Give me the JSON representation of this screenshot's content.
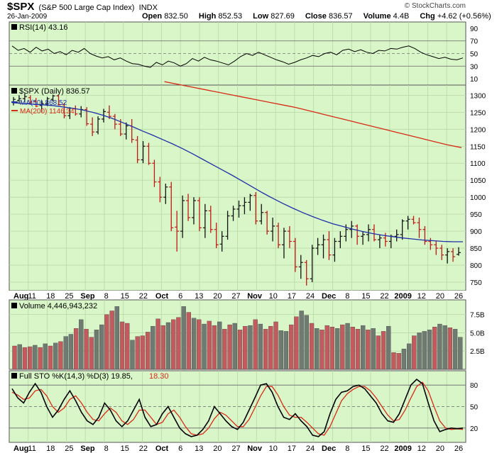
{
  "header": {
    "symbol": "$SPX",
    "name": "(S&P 500 Large Cap Index)",
    "exchange": "INDX",
    "date": "26-Jan-2009",
    "open_label": "Open",
    "open": "832.50",
    "high_label": "High",
    "high": "852.53",
    "low_label": "Low",
    "low": "827.69",
    "close_label": "Close",
    "close": "836.57",
    "volume_label": "Volume",
    "volume": "4.4B",
    "chg_label": "Chg",
    "chg": "+4.62 (+0.56%)",
    "watermark": "© StockCharts.com"
  },
  "colors": {
    "panel_bg": "#d9f6c8",
    "grid": "#b6d9a4",
    "ma50": "#1f2fa8",
    "ma200": "#d92a16",
    "up_volume": "#6f7a72",
    "down_volume": "#c25a5f",
    "price_bar_up": "#111111",
    "price_bar_down": "#c01818",
    "sto_k": "#000000",
    "sto_d": "#d92a16"
  },
  "chart_data": [
    {
      "type": "line",
      "title": "RSI(14) 43.16",
      "ylim": [
        0,
        100
      ],
      "yticks": [
        10,
        30,
        50,
        70,
        90
      ],
      "reference_lines": [
        30,
        50,
        70
      ],
      "values": [
        62,
        55,
        58,
        52,
        60,
        54,
        57,
        50,
        53,
        48,
        55,
        52,
        58,
        50,
        46,
        43,
        45,
        40,
        43,
        38,
        34,
        33,
        30,
        28,
        36,
        32,
        38,
        35,
        30,
        34,
        42,
        38,
        44,
        40,
        38,
        35,
        32,
        38,
        45,
        50,
        47,
        52,
        48,
        44,
        40,
        37,
        33,
        36,
        40,
        43,
        47,
        45,
        50,
        52,
        48,
        55,
        57,
        53,
        56,
        52,
        50,
        55,
        54,
        58,
        57,
        60,
        62,
        58,
        52,
        48,
        45,
        42,
        44,
        41,
        40,
        43
      ]
    },
    {
      "type": "line",
      "title": "$SPX (Daily) 836.57",
      "legend": [
        {
          "name": "MA(50) 868.52",
          "color": "#1f2fa8"
        },
        {
          "name": "MA(200) 1146.34",
          "color": "#d92a16"
        }
      ],
      "x_tick_labels": [
        "Aug",
        "11",
        "18",
        "25",
        "Sep",
        "8",
        "15",
        "22",
        "Oct",
        "6",
        "13",
        "20",
        "27",
        "Nov",
        "10",
        "17",
        "24",
        "Dec",
        "8",
        "15",
        "22",
        "2009",
        "12",
        "20",
        "26"
      ],
      "ylim": [
        725,
        1330
      ],
      "yticks": [
        750,
        800,
        850,
        900,
        950,
        1000,
        1050,
        1100,
        1150,
        1200,
        1250,
        1300
      ],
      "price_bars": [
        [
          1280,
          1295,
          1270,
          1288
        ],
        [
          1285,
          1300,
          1275,
          1290
        ],
        [
          1290,
          1305,
          1280,
          1296
        ],
        [
          1293,
          1300,
          1275,
          1280
        ],
        [
          1282,
          1292,
          1265,
          1268
        ],
        [
          1270,
          1285,
          1250,
          1275
        ],
        [
          1275,
          1295,
          1268,
          1290
        ],
        [
          1288,
          1302,
          1282,
          1298
        ],
        [
          1298,
          1300,
          1270,
          1272
        ],
        [
          1272,
          1278,
          1232,
          1240
        ],
        [
          1240,
          1265,
          1230,
          1262
        ],
        [
          1260,
          1270,
          1240,
          1245
        ],
        [
          1245,
          1268,
          1235,
          1258
        ],
        [
          1258,
          1265,
          1210,
          1216
        ],
        [
          1215,
          1235,
          1180,
          1192
        ],
        [
          1192,
          1238,
          1185,
          1230
        ],
        [
          1230,
          1260,
          1220,
          1252
        ],
        [
          1250,
          1270,
          1230,
          1238
        ],
        [
          1238,
          1245,
          1200,
          1215
        ],
        [
          1215,
          1230,
          1180,
          1186
        ],
        [
          1186,
          1220,
          1170,
          1210
        ],
        [
          1210,
          1230,
          1160,
          1170
        ],
        [
          1168,
          1180,
          1100,
          1110
        ],
        [
          1110,
          1165,
          1100,
          1150
        ],
        [
          1150,
          1160,
          1095,
          1100
        ],
        [
          1100,
          1110,
          1030,
          1045
        ],
        [
          1045,
          1060,
          985,
          1000
        ],
        [
          1000,
          1040,
          980,
          1030
        ],
        [
          1030,
          1045,
          900,
          910
        ],
        [
          912,
          960,
          840,
          900
        ],
        [
          900,
          1005,
          880,
          990
        ],
        [
          990,
          1010,
          930,
          940
        ],
        [
          940,
          1000,
          920,
          990
        ],
        [
          990,
          1000,
          900,
          910
        ],
        [
          910,
          980,
          880,
          960
        ],
        [
          960,
          975,
          895,
          905
        ],
        [
          905,
          925,
          850,
          860
        ],
        [
          862,
          900,
          840,
          885
        ],
        [
          885,
          960,
          875,
          945
        ],
        [
          945,
          975,
          930,
          965
        ],
        [
          965,
          990,
          940,
          975
        ],
        [
          975,
          1000,
          950,
          985
        ],
        [
          985,
          1010,
          960,
          1005
        ],
        [
          1005,
          1015,
          920,
          930
        ],
        [
          930,
          980,
          920,
          955
        ],
        [
          955,
          960,
          890,
          900
        ],
        [
          900,
          940,
          870,
          915
        ],
        [
          915,
          925,
          850,
          860
        ],
        [
          860,
          910,
          820,
          900
        ],
        [
          900,
          915,
          850,
          870
        ],
        [
          870,
          880,
          780,
          795
        ],
        [
          795,
          830,
          760,
          808
        ],
        [
          808,
          815,
          740,
          760
        ],
        [
          760,
          860,
          750,
          850
        ],
        [
          850,
          880,
          830,
          860
        ],
        [
          860,
          890,
          820,
          875
        ],
        [
          875,
          900,
          815,
          830
        ],
        [
          830,
          880,
          810,
          870
        ],
        [
          870,
          900,
          850,
          885
        ],
        [
          885,
          920,
          870,
          905
        ],
        [
          905,
          930,
          880,
          915
        ],
        [
          915,
          920,
          860,
          885
        ],
        [
          885,
          900,
          860,
          890
        ],
        [
          890,
          920,
          870,
          905
        ],
        [
          905,
          920,
          870,
          875
        ],
        [
          875,
          890,
          850,
          880
        ],
        [
          880,
          895,
          855,
          870
        ],
        [
          870,
          890,
          850,
          885
        ],
        [
          885,
          905,
          870,
          890
        ],
        [
          890,
          935,
          875,
          930
        ],
        [
          930,
          945,
          905,
          935
        ],
        [
          935,
          945,
          920,
          925
        ],
        [
          925,
          940,
          880,
          905
        ],
        [
          905,
          915,
          860,
          870
        ],
        [
          870,
          880,
          845,
          860
        ],
        [
          860,
          870,
          830,
          850
        ],
        [
          850,
          860,
          815,
          830
        ],
        [
          830,
          850,
          805,
          840
        ],
        [
          840,
          850,
          810,
          825
        ],
        [
          832,
          853,
          828,
          837
        ]
      ],
      "ma50": [
        1278,
        1276,
        1274,
        1272,
        1270,
        1266,
        1262,
        1257,
        1250,
        1242,
        1232,
        1220,
        1208,
        1195,
        1183,
        1170,
        1157,
        1143,
        1128,
        1112,
        1096,
        1080,
        1064,
        1047,
        1030,
        1013,
        997,
        982,
        968,
        955,
        943,
        932,
        922,
        914,
        906,
        899,
        893,
        888,
        884,
        880,
        877,
        874,
        872,
        870,
        869,
        869
      ],
      "ma200": [
        1340,
        1336,
        1332,
        1328,
        1324,
        1320,
        1316,
        1312,
        1308,
        1304,
        1300,
        1296,
        1292,
        1288,
        1284,
        1280,
        1276,
        1272,
        1268,
        1264,
        1259,
        1254,
        1249,
        1244,
        1239,
        1234,
        1229,
        1224,
        1219,
        1214,
        1209,
        1204,
        1199,
        1194,
        1189,
        1184,
        1179,
        1174,
        1169,
        1164,
        1159,
        1154,
        1150,
        1146
      ]
    },
    {
      "type": "bar",
      "title": "Volume 4,446,943,232",
      "ylim": [
        0,
        9.5
      ],
      "yticks": [
        2.5,
        5.0,
        7.5
      ],
      "ytick_labels": [
        "2.5B",
        "5.0B",
        "7.5B"
      ],
      "values": [
        3.2,
        3.4,
        3.0,
        3.1,
        3.3,
        3.0,
        3.5,
        3.2,
        3.6,
        3.8,
        4.5,
        4.8,
        5.6,
        6.8,
        5.5,
        4.4,
        5.4,
        6.1,
        7.5,
        8.0,
        8.6,
        6.5,
        6.3,
        4.0,
        4.5,
        4.6,
        5.1,
        5.9,
        6.9,
        6.0,
        6.4,
        6.8,
        7.1,
        8.6,
        7.8,
        7.0,
        6.8,
        6.2,
        6.6,
        6.0,
        6.5,
        5.5,
        6.1,
        6.3,
        5.4,
        5.9,
        6.0,
        6.8,
        6.2,
        5.5,
        5.9,
        6.5,
        5.3,
        5.2,
        6.1,
        7.2,
        8.0,
        7.4,
        6.3,
        5.6,
        5.4,
        6.0,
        5.8,
        5.6,
        6.1,
        6.3,
        5.8,
        5.5,
        6.0,
        5.4,
        5.6,
        4.6,
        5.2,
        5.9,
        2.3,
        2.2,
        2.8,
        3.5,
        4.6,
        5.0,
        5.2,
        5.4,
        5.8,
        6.2,
        6.0,
        5.7,
        5.5,
        4.4
      ],
      "up": [
        0,
        1,
        0,
        0,
        1,
        0,
        1,
        0,
        1,
        0,
        1,
        1,
        0,
        1,
        0,
        0,
        1,
        1,
        0,
        0,
        1,
        0,
        0,
        1,
        0,
        0,
        0,
        1,
        0,
        0,
        1,
        0,
        0,
        1,
        0,
        1,
        0,
        1,
        0,
        0,
        1,
        0,
        0,
        1,
        0,
        0,
        1,
        0,
        1,
        0,
        0,
        0,
        1,
        1,
        0,
        0,
        1,
        1,
        0,
        1,
        0,
        0,
        0,
        1,
        0,
        1,
        0,
        0,
        1,
        0,
        1,
        0,
        0,
        1,
        0,
        0,
        1,
        1,
        0,
        1,
        1,
        1,
        0,
        1,
        1,
        0,
        1,
        1
      ]
    },
    {
      "type": "line",
      "title": "Full STO %K(14,3) %D(3) 19.85, 18.30",
      "ylim": [
        0,
        100
      ],
      "yticks": [
        20,
        50,
        80
      ],
      "reference_lines": [
        20,
        50,
        80
      ],
      "x_tick_labels": [
        "Aug",
        "11",
        "18",
        "25",
        "Sep",
        "8",
        "15",
        "22",
        "Oct",
        "6",
        "13",
        "20",
        "27",
        "Nov",
        "10",
        "17",
        "24",
        "Dec",
        "8",
        "15",
        "22",
        "2009",
        "12",
        "20",
        "26"
      ],
      "k": [
        75,
        62,
        55,
        70,
        82,
        70,
        50,
        35,
        45,
        60,
        72,
        58,
        42,
        30,
        25,
        35,
        55,
        45,
        30,
        22,
        30,
        45,
        60,
        35,
        22,
        25,
        40,
        50,
        35,
        20,
        12,
        8,
        10,
        18,
        30,
        50,
        40,
        30,
        22,
        18,
        28,
        45,
        62,
        80,
        82,
        70,
        50,
        35,
        32,
        40,
        30,
        22,
        10,
        8,
        15,
        40,
        60,
        70,
        72,
        78,
        80,
        75,
        65,
        55,
        40,
        30,
        28,
        40,
        60,
        80,
        88,
        82,
        55,
        30,
        15,
        18,
        20,
        19,
        20
      ],
      "d": [
        70,
        66,
        60,
        62,
        72,
        74,
        65,
        50,
        42,
        48,
        60,
        65,
        55,
        42,
        32,
        30,
        40,
        48,
        42,
        30,
        25,
        32,
        45,
        45,
        35,
        25,
        28,
        40,
        45,
        35,
        22,
        12,
        10,
        12,
        20,
        33,
        42,
        38,
        30,
        22,
        22,
        32,
        48,
        65,
        78,
        78,
        66,
        50,
        38,
        35,
        35,
        28,
        20,
        12,
        10,
        22,
        40,
        58,
        68,
        74,
        78,
        78,
        72,
        62,
        50,
        38,
        30,
        32,
        45,
        62,
        78,
        84,
        72,
        50,
        30,
        20,
        18,
        19,
        18
      ]
    }
  ]
}
